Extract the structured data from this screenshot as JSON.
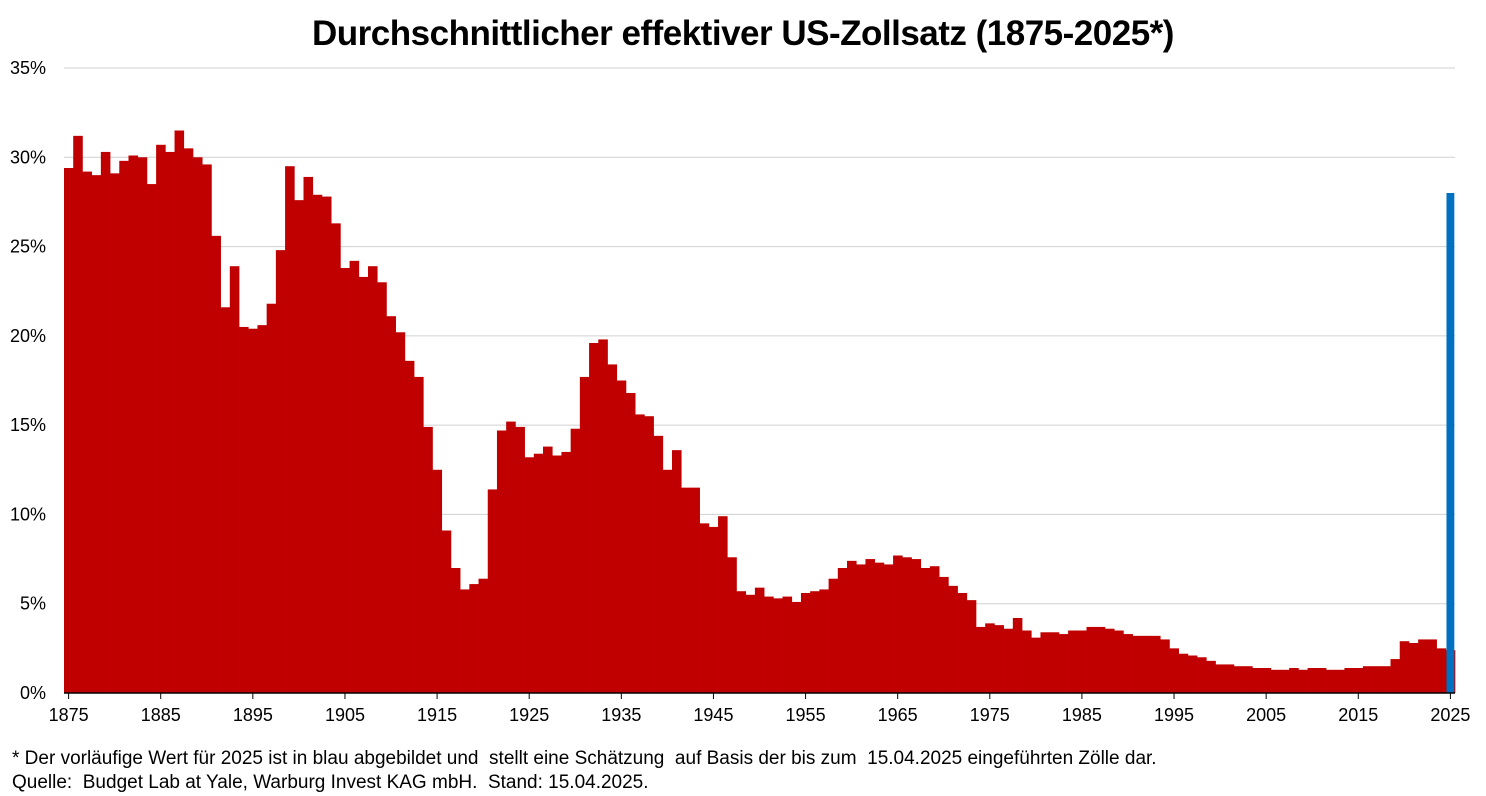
{
  "chart_data": {
    "type": "bar",
    "title": "Durchschnittlicher effektiver US-Zollsatz (1875-2025*)",
    "xlabel": "",
    "ylabel": "",
    "ylim": [
      0,
      35
    ],
    "y_ticks": [
      "0%",
      "5%",
      "10%",
      "15%",
      "20%",
      "25%",
      "30%",
      "35%"
    ],
    "x_ticks": [
      "1875",
      "1885",
      "1895",
      "1905",
      "1915",
      "1925",
      "1935",
      "1945",
      "1955",
      "1965",
      "1975",
      "1985",
      "1995",
      "2005",
      "2015",
      "2025"
    ],
    "grid": "horizontal",
    "colors": {
      "historical": "#c00000",
      "estimate": "#0070c0"
    },
    "series": [
      {
        "start_year": 1875,
        "values": [
          29.4,
          31.2,
          29.2,
          29.0,
          30.3,
          29.1,
          29.8,
          30.1,
          30.0,
          28.5,
          30.7,
          30.3,
          31.5,
          30.5,
          30.0,
          29.6,
          25.6,
          21.6,
          23.9,
          20.5,
          20.4,
          20.6,
          21.8,
          24.8,
          29.5,
          27.6,
          28.9,
          27.9,
          27.8,
          26.3,
          23.8,
          24.2,
          23.3,
          23.9,
          23.0,
          21.1,
          20.2,
          18.6,
          17.7,
          14.9,
          12.5,
          9.1,
          7.0,
          5.8,
          6.1,
          6.4,
          11.4,
          14.7,
          15.2,
          14.9,
          13.2,
          13.4,
          13.8,
          13.3,
          13.5,
          14.8,
          17.7,
          19.6,
          19.8,
          18.4,
          17.5,
          16.8,
          15.6,
          15.5,
          14.4,
          12.5,
          13.6,
          11.5,
          11.5,
          9.5,
          9.3,
          9.9,
          7.6,
          5.7,
          5.5,
          5.9,
          5.4,
          5.3,
          5.4,
          5.1,
          5.6,
          5.7,
          5.8,
          6.4,
          7.0,
          7.4,
          7.2,
          7.5,
          7.3,
          7.2,
          7.7,
          7.6,
          7.5,
          7.0,
          7.1,
          6.5,
          6.0,
          5.6,
          5.2,
          3.7,
          3.9,
          3.8,
          3.6,
          4.2,
          3.5,
          3.1,
          3.4,
          3.4,
          3.3,
          3.5,
          3.5,
          3.7,
          3.7,
          3.6,
          3.5,
          3.3,
          3.2,
          3.2,
          3.2,
          3.0,
          2.5,
          2.2,
          2.1,
          2.0,
          1.8,
          1.6,
          1.6,
          1.5,
          1.5,
          1.4,
          1.4,
          1.3,
          1.3,
          1.4,
          1.3,
          1.4,
          1.4,
          1.3,
          1.3,
          1.4,
          1.4,
          1.5,
          1.5,
          1.5,
          1.9,
          2.9,
          2.8,
          3.0,
          3.0,
          2.5,
          2.4
        ]
      },
      {
        "x": [
          2025
        ],
        "values": [
          28.0
        ],
        "estimate": true
      }
    ]
  },
  "footnotes": {
    "line1": "* Der vorläufige Wert für 2025 ist in blau abgebildet und  stellt eine Schätzung  auf Basis der bis zum  15.04.2025 eingeführten Zölle dar.",
    "line2": "Quelle:  Budget Lab at Yale, Warburg Invest KAG mbH.  Stand: 15.04.2025."
  }
}
